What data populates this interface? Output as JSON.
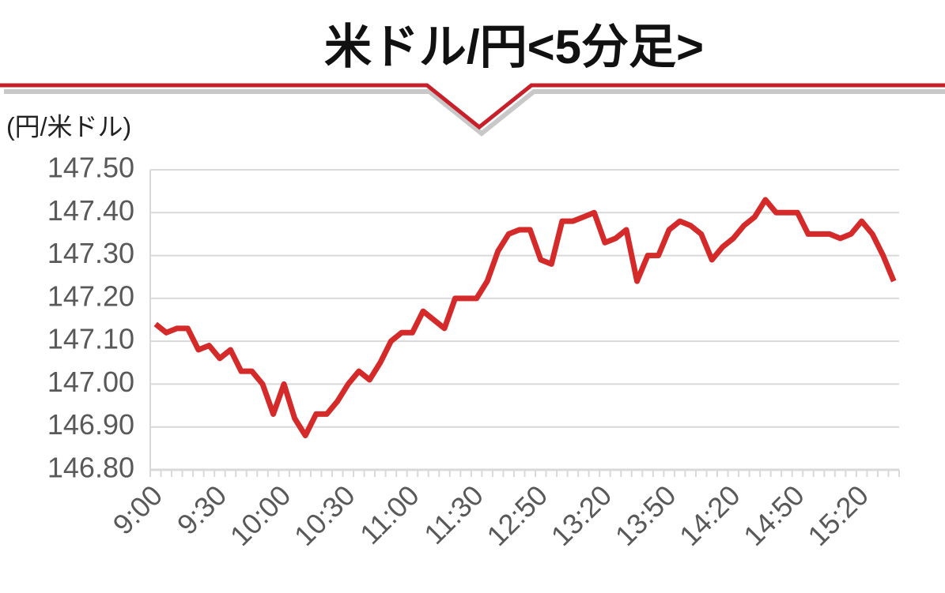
{
  "chart_data": {
    "type": "line",
    "title": "米ドル/円<5分足>",
    "y_label": "(円/米ドル)",
    "categories": [
      "9:00",
      null,
      null,
      null,
      null,
      null,
      "9:30",
      null,
      null,
      null,
      null,
      null,
      "10:00",
      null,
      null,
      null,
      null,
      null,
      "10:30",
      null,
      null,
      null,
      null,
      null,
      "11:00",
      null,
      null,
      null,
      null,
      null,
      "11:30",
      null,
      null,
      null,
      null,
      null,
      "12:50",
      null,
      null,
      null,
      null,
      null,
      "13:20",
      null,
      null,
      null,
      null,
      null,
      "13:50",
      null,
      null,
      null,
      null,
      null,
      "14:20",
      null,
      null,
      null,
      null,
      null,
      "14:50",
      null,
      null,
      null,
      null,
      null,
      "15:20",
      null,
      null,
      null
    ],
    "series": [
      {
        "name": "米ドル/円",
        "color": "#d42a2a",
        "values": [
          147.14,
          147.12,
          147.13,
          147.13,
          147.08,
          147.09,
          147.06,
          147.08,
          147.03,
          147.03,
          147.0,
          146.93,
          147.0,
          146.92,
          146.88,
          146.93,
          146.93,
          146.96,
          147.0,
          147.03,
          147.01,
          147.05,
          147.1,
          147.12,
          147.12,
          147.17,
          147.15,
          147.13,
          147.2,
          147.2,
          147.2,
          147.24,
          147.31,
          147.35,
          147.36,
          147.36,
          147.29,
          147.28,
          147.38,
          147.38,
          147.39,
          147.4,
          147.33,
          147.34,
          147.36,
          147.24,
          147.3,
          147.3,
          147.36,
          147.38,
          147.37,
          147.35,
          147.29,
          147.32,
          147.34,
          147.37,
          147.39,
          147.43,
          147.4,
          147.4,
          147.4,
          147.35,
          147.35,
          147.35,
          147.34,
          147.35,
          147.38,
          147.35,
          147.3,
          147.24
        ]
      }
    ],
    "ylim": [
      146.8,
      147.5
    ],
    "yticks": [
      {
        "value": 146.8,
        "label": "146.80"
      },
      {
        "value": 146.9,
        "label": "146.90"
      },
      {
        "value": 147,
        "label": "147.00"
      },
      {
        "value": 147.1,
        "label": "147.10"
      },
      {
        "value": 147.2,
        "label": "147.20"
      },
      {
        "value": 147.3,
        "label": "147.30"
      },
      {
        "value": 147.4,
        "label": "147.40"
      },
      {
        "value": 147.5,
        "label": "147.50"
      }
    ],
    "grid": true
  }
}
